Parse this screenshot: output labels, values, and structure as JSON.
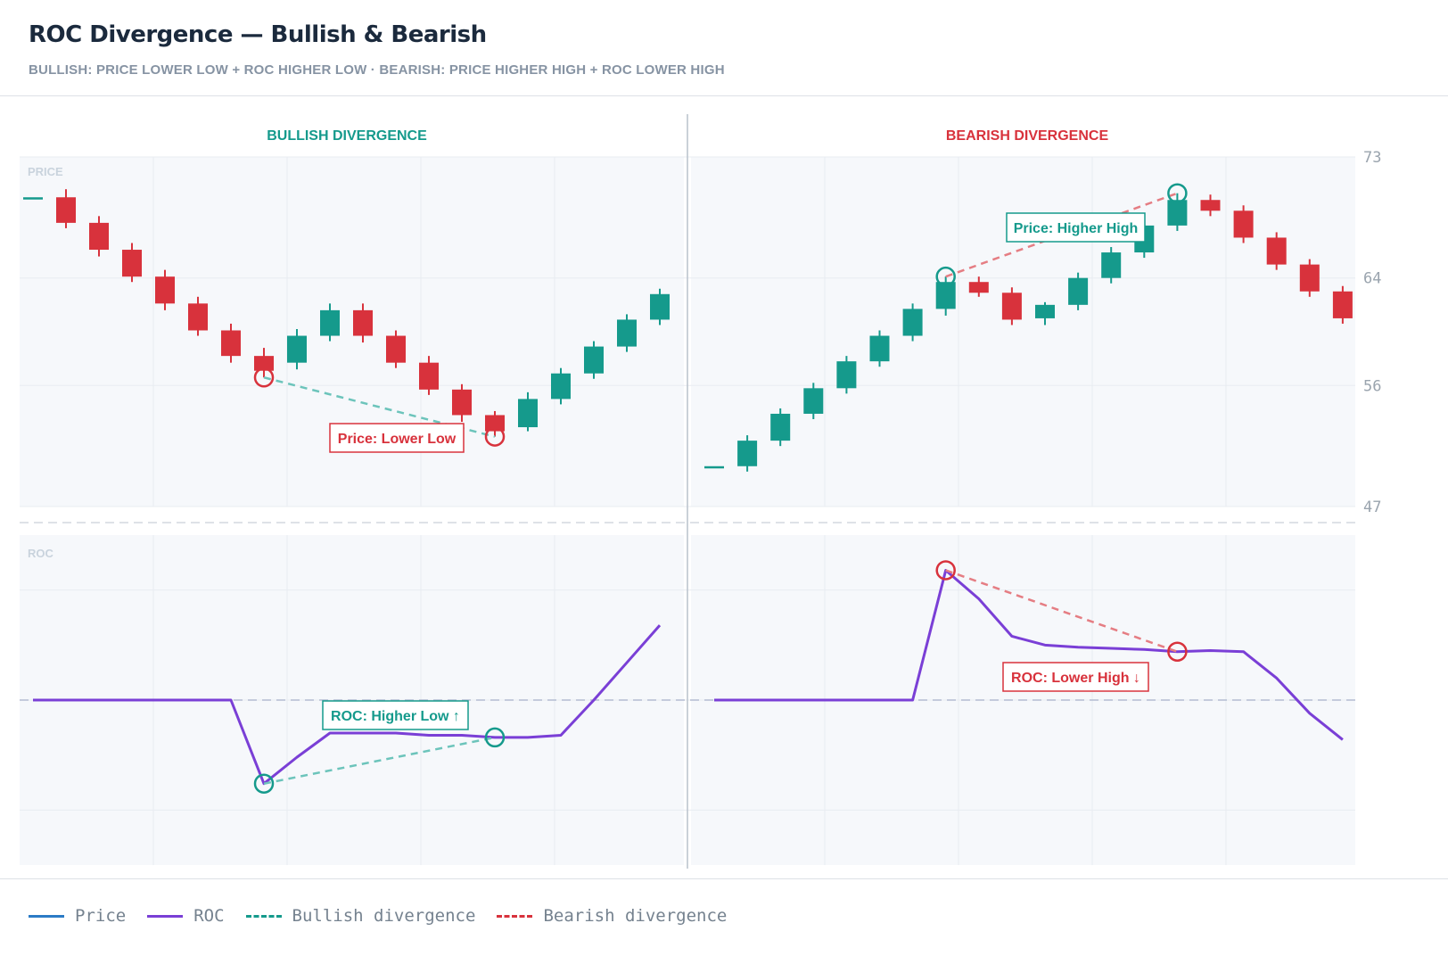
{
  "header": {
    "title": "ROC Divergence — Bullish & Bearish",
    "subtitle": "BULLISH: PRICE LOWER LOW + ROC HIGHER LOW · BEARISH: PRICE HIGHER HIGH + ROC LOWER HIGH"
  },
  "legend": {
    "items": [
      {
        "label": "Price",
        "color": "#2b7bc6",
        "style": "solid"
      },
      {
        "label": "ROC",
        "color": "#7a3fd6",
        "style": "solid"
      },
      {
        "label": "Bullish divergence",
        "color": "#159a8c",
        "style": "dashed"
      },
      {
        "label": "Bearish divergence",
        "color": "#d8323c",
        "style": "dashed"
      }
    ]
  },
  "colors": {
    "up": "#159a8c",
    "down": "#d8323c",
    "roc": "#7a3fd6",
    "bull_div": "#6cc4bb",
    "bear_div": "#e57d83",
    "panel_bg": "#f6f8fb",
    "axis_text": "#9aa4ae"
  },
  "chart_data": [
    {
      "type": "candlestick",
      "title": "BULLISH DIVERGENCE",
      "price_label": "PRICE",
      "roc_label": "ROC",
      "ylim": [
        47,
        73
      ],
      "yticks": [
        73,
        64,
        56,
        47
      ],
      "candles": [
        {
          "o": 70.0,
          "h": 70.0,
          "l": 70.0,
          "c": 70.0
        },
        {
          "o": 70.0,
          "h": 70.6,
          "l": 67.7,
          "c": 68.1
        },
        {
          "o": 68.1,
          "h": 68.6,
          "l": 65.6,
          "c": 66.1
        },
        {
          "o": 66.1,
          "h": 66.6,
          "l": 63.7,
          "c": 64.1
        },
        {
          "o": 64.1,
          "h": 64.6,
          "l": 61.6,
          "c": 62.1
        },
        {
          "o": 62.1,
          "h": 62.6,
          "l": 59.7,
          "c": 60.1
        },
        {
          "o": 60.1,
          "h": 60.6,
          "l": 57.7,
          "c": 58.2
        },
        {
          "o": 58.2,
          "h": 58.8,
          "l": 56.6,
          "c": 57.1
        },
        {
          "o": 57.7,
          "h": 60.2,
          "l": 57.2,
          "c": 59.7
        },
        {
          "o": 59.7,
          "h": 62.1,
          "l": 59.3,
          "c": 61.6
        },
        {
          "o": 61.6,
          "h": 62.1,
          "l": 59.2,
          "c": 59.7
        },
        {
          "o": 59.7,
          "h": 60.1,
          "l": 57.3,
          "c": 57.7
        },
        {
          "o": 57.7,
          "h": 58.2,
          "l": 55.3,
          "c": 55.7
        },
        {
          "o": 55.7,
          "h": 56.1,
          "l": 53.3,
          "c": 53.8
        },
        {
          "o": 53.8,
          "h": 54.1,
          "l": 52.2,
          "c": 52.6
        },
        {
          "o": 52.9,
          "h": 55.5,
          "l": 52.6,
          "c": 55.0
        },
        {
          "o": 55.0,
          "h": 57.3,
          "l": 54.6,
          "c": 56.9
        },
        {
          "o": 56.9,
          "h": 59.3,
          "l": 56.5,
          "c": 58.9
        },
        {
          "o": 58.9,
          "h": 61.3,
          "l": 58.5,
          "c": 60.9
        },
        {
          "o": 60.9,
          "h": 63.2,
          "l": 60.5,
          "c": 62.8
        }
      ],
      "roc": [
        0,
        0,
        0,
        0,
        0,
        0,
        0,
        -3.8,
        -2.6,
        -1.5,
        -1.5,
        -1.5,
        -1.6,
        -1.6,
        -1.7,
        -1.7,
        -1.6,
        0,
        1.7,
        3.4
      ],
      "roc_ylim": [
        -7.5,
        7.5
      ],
      "price_pivots": [
        7,
        14
      ],
      "roc_pivots": [
        7,
        14
      ],
      "price_annotation": "Price: Lower Low",
      "roc_annotation": "ROC: Higher Low ↑",
      "divergence": "bullish"
    },
    {
      "type": "candlestick",
      "title": "BEARISH DIVERGENCE",
      "price_label": "",
      "roc_label": "",
      "ylim": [
        47,
        73
      ],
      "yticks": [
        73,
        64,
        56,
        47
      ],
      "candles": [
        {
          "o": 50.0,
          "h": 50.0,
          "l": 50.0,
          "c": 50.0
        },
        {
          "o": 50.0,
          "h": 52.3,
          "l": 49.6,
          "c": 51.9
        },
        {
          "o": 51.9,
          "h": 54.3,
          "l": 51.5,
          "c": 53.9
        },
        {
          "o": 53.9,
          "h": 56.2,
          "l": 53.5,
          "c": 55.8
        },
        {
          "o": 55.8,
          "h": 58.2,
          "l": 55.4,
          "c": 57.8
        },
        {
          "o": 57.8,
          "h": 60.1,
          "l": 57.4,
          "c": 59.7
        },
        {
          "o": 59.7,
          "h": 62.1,
          "l": 59.3,
          "c": 61.7
        },
        {
          "o": 61.7,
          "h": 64.1,
          "l": 61.2,
          "c": 63.7
        },
        {
          "o": 63.7,
          "h": 64.1,
          "l": 62.6,
          "c": 62.9
        },
        {
          "o": 62.9,
          "h": 63.3,
          "l": 60.5,
          "c": 60.9
        },
        {
          "o": 61.0,
          "h": 62.2,
          "l": 60.5,
          "c": 62.0
        },
        {
          "o": 62.0,
          "h": 64.4,
          "l": 61.6,
          "c": 64.0
        },
        {
          "o": 64.0,
          "h": 66.3,
          "l": 63.6,
          "c": 65.9
        },
        {
          "o": 65.9,
          "h": 68.3,
          "l": 65.5,
          "c": 67.9
        },
        {
          "o": 67.9,
          "h": 70.3,
          "l": 67.5,
          "c": 69.8
        },
        {
          "o": 69.8,
          "h": 70.2,
          "l": 68.6,
          "c": 69.0
        },
        {
          "o": 69.0,
          "h": 69.4,
          "l": 66.6,
          "c": 67.0
        },
        {
          "o": 67.0,
          "h": 67.4,
          "l": 64.6,
          "c": 65.0
        },
        {
          "o": 65.0,
          "h": 65.4,
          "l": 62.6,
          "c": 63.0
        },
        {
          "o": 63.0,
          "h": 63.4,
          "l": 60.6,
          "c": 61.0
        }
      ],
      "roc": [
        0,
        0,
        0,
        0,
        0,
        0,
        0,
        5.9,
        4.6,
        2.9,
        2.5,
        2.4,
        2.35,
        2.3,
        2.2,
        2.25,
        2.2,
        1.0,
        -0.6,
        -1.8
      ],
      "roc_ylim": [
        -7.5,
        7.5
      ],
      "price_pivots": [
        7,
        14
      ],
      "roc_pivots": [
        7,
        14
      ],
      "price_annotation": "Price: Higher High",
      "roc_annotation": "ROC: Lower High ↓",
      "divergence": "bearish"
    }
  ]
}
